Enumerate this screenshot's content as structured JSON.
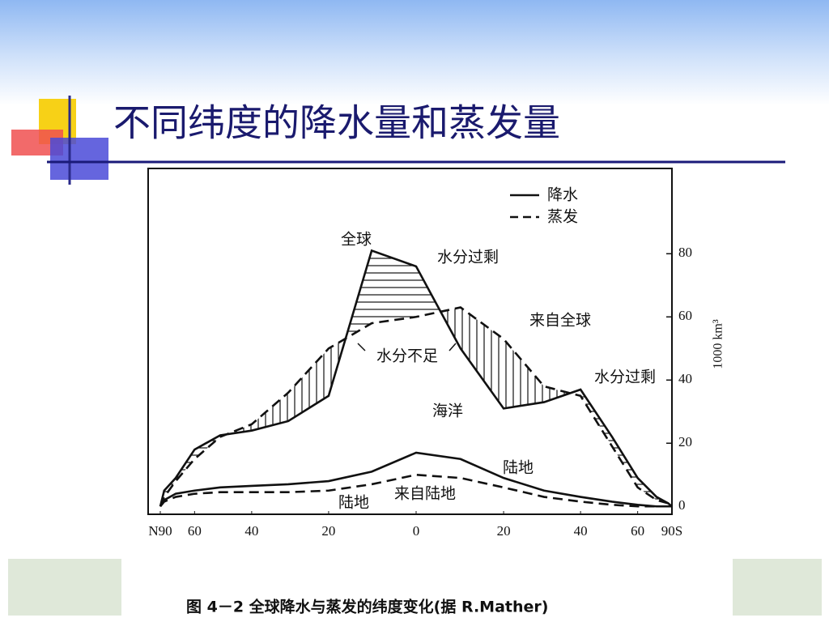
{
  "slide": {
    "title": "不同纬度的降水量和蒸发量"
  },
  "chart_data": {
    "type": "line",
    "xscale": "sine",
    "x": [
      90,
      80,
      70,
      60,
      50,
      40,
      30,
      20,
      10,
      0,
      -10,
      -20,
      -30,
      -40,
      -50,
      -60,
      -70,
      -80,
      -90
    ],
    "xlim": [
      90,
      -90
    ],
    "xticks": [
      {
        "value": 90,
        "label": "N90"
      },
      60,
      40,
      20,
      0,
      {
        "value": -20,
        "label": "20"
      },
      {
        "value": -40,
        "label": "40"
      },
      {
        "value": -60,
        "label": "60"
      },
      {
        "value": -90,
        "label": "90S"
      }
    ],
    "ylim": [
      -2.5,
      107
    ],
    "yticks": [
      0,
      20,
      40,
      60,
      80
    ],
    "ylabel": "1000 km³",
    "series": [
      {
        "style": "solid",
        "color": "#111111",
        "values": [
          0,
          5,
          9,
          18,
          22.5,
          24,
          27,
          35,
          81,
          76,
          50,
          31,
          33,
          37,
          22,
          9,
          3,
          1,
          0
        ]
      },
      {
        "style": "dashed",
        "color": "#111111",
        "values": [
          0,
          3,
          8,
          15,
          22,
          26,
          36,
          50,
          58,
          60,
          63,
          53,
          38,
          35,
          19,
          6,
          2,
          1,
          0
        ]
      },
      {
        "style": "solid",
        "color": "#111111",
        "values": [
          0,
          2,
          4,
          5,
          6,
          6.5,
          7,
          8,
          11,
          17,
          15,
          9,
          5,
          3,
          1.5,
          0.5,
          0,
          0,
          0
        ]
      },
      {
        "style": "dashed",
        "color": "#111111",
        "values": [
          0,
          1.5,
          3,
          4,
          4.5,
          4.5,
          4.5,
          5,
          7,
          10,
          9,
          6,
          3,
          1.5,
          0.5,
          0,
          0,
          0,
          0
        ]
      }
    ],
    "legend": [
      {
        "label": "降水",
        "style": "solid"
      },
      {
        "label": "蒸发",
        "style": "dashed"
      }
    ],
    "annotations": [
      "全球",
      "水分过剩",
      "来自全球",
      "水分不足",
      "水分过剩",
      "海洋",
      "陆地",
      "来自陆地",
      "陆地"
    ],
    "caption": "图 4－2  全球降水与蒸发的纬度变化(据 R.Mather)"
  }
}
